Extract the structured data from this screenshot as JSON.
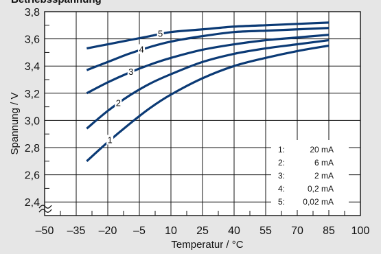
{
  "chart_data": {
    "type": "line",
    "title": "Betriebsspannung",
    "xlabel": "Temperatur / °C",
    "ylabel": "Spannung / V",
    "x_ticks": [
      "–50",
      "–35",
      "–20",
      "–5",
      "10",
      "25",
      "40",
      "55",
      "70",
      "85",
      "100"
    ],
    "y_ticks": [
      "2,4",
      "2,6",
      "2,8",
      "3,0",
      "3,2",
      "3,4",
      "3,6",
      "3,8"
    ],
    "xlim": [
      -50,
      100
    ],
    "ylim": [
      2.3,
      3.8
    ],
    "y_axis_break": true,
    "grid": true,
    "series": [
      {
        "name": "1",
        "x": [
          -30,
          -20,
          -10,
          0,
          10,
          25,
          40,
          55,
          70,
          85
        ],
        "y": [
          2.7,
          2.84,
          2.97,
          3.09,
          3.19,
          3.31,
          3.4,
          3.46,
          3.51,
          3.55
        ]
      },
      {
        "name": "2",
        "x": [
          -30,
          -20,
          -10,
          0,
          10,
          25,
          40,
          55,
          70,
          85
        ],
        "y": [
          2.94,
          3.07,
          3.18,
          3.27,
          3.34,
          3.43,
          3.49,
          3.53,
          3.56,
          3.59
        ]
      },
      {
        "name": "3",
        "x": [
          -30,
          -20,
          -10,
          0,
          10,
          25,
          40,
          55,
          70,
          85
        ],
        "y": [
          3.2,
          3.28,
          3.35,
          3.41,
          3.46,
          3.52,
          3.56,
          3.59,
          3.61,
          3.63
        ]
      },
      {
        "name": "4",
        "x": [
          -30,
          -20,
          -10,
          0,
          10,
          25,
          40,
          55,
          70,
          85
        ],
        "y": [
          3.37,
          3.43,
          3.49,
          3.54,
          3.58,
          3.62,
          3.65,
          3.66,
          3.67,
          3.68
        ]
      },
      {
        "name": "5",
        "x": [
          -30,
          -20,
          -10,
          0,
          10,
          25,
          40,
          55,
          70,
          85
        ],
        "y": [
          3.53,
          3.56,
          3.59,
          3.62,
          3.65,
          3.67,
          3.69,
          3.7,
          3.71,
          3.72
        ]
      }
    ],
    "curve_label_x": [
      -19,
      -15,
      -9,
      -4,
      5
    ],
    "legend": {
      "placement": "bottom-right",
      "entries": [
        {
          "key": "1:",
          "value": "20 mA"
        },
        {
          "key": "2:",
          "value": "6 mA"
        },
        {
          "key": "3:",
          "value": "2 mA"
        },
        {
          "key": "4:",
          "value": "0,2 mA"
        },
        {
          "key": "5:",
          "value": "0,02 mA"
        }
      ]
    },
    "colors": {
      "line": "#0b3a75",
      "grid": "#111111",
      "background": "#e6e6e6",
      "plot_background": "#ffffff"
    }
  }
}
